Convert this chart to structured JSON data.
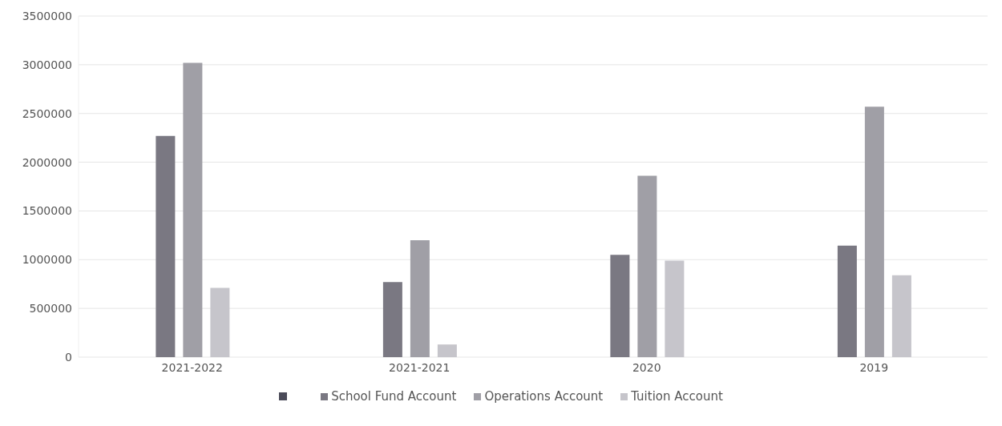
{
  "chart_data": {
    "type": "bar",
    "categories": [
      "2021-2022",
      "2021-2021",
      "2020",
      "2019"
    ],
    "series": [
      {
        "name": "School Fund Account",
        "color": "#7a7882",
        "values": [
          2270000,
          770000,
          1050000,
          1145000
        ]
      },
      {
        "name": "Operations Account",
        "color": "#a09fa6",
        "values": [
          3020000,
          1200000,
          1860000,
          2570000
        ]
      },
      {
        "name": "Tuition Account",
        "color": "#c6c5cb",
        "values": [
          710000,
          130000,
          990000,
          840000
        ]
      }
    ],
    "ylim": [
      0,
      3500000
    ],
    "yticks": [
      0,
      500000,
      1000000,
      1500000,
      2000000,
      2500000,
      3000000,
      3500000
    ],
    "grid": "y",
    "legend": "bottom"
  }
}
